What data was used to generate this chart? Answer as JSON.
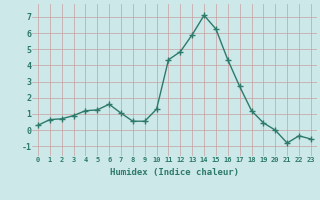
{
  "x": [
    0,
    1,
    2,
    3,
    4,
    5,
    6,
    7,
    8,
    9,
    10,
    11,
    12,
    13,
    14,
    15,
    16,
    17,
    18,
    19,
    20,
    21,
    22,
    23
  ],
  "y": [
    0.3,
    0.65,
    0.7,
    0.9,
    1.2,
    1.25,
    1.6,
    1.05,
    0.55,
    0.55,
    1.3,
    4.35,
    4.85,
    5.9,
    7.1,
    6.25,
    4.35,
    2.7,
    1.2,
    0.45,
    0.0,
    -0.8,
    -0.35,
    -0.55
  ],
  "xlabel": "Humidex (Indice chaleur)",
  "ylim": [
    -1.6,
    7.8
  ],
  "xlim": [
    -0.5,
    23.5
  ],
  "yticks": [
    -1,
    0,
    1,
    2,
    3,
    4,
    5,
    6,
    7
  ],
  "xtick_labels": [
    "0",
    "1",
    "2",
    "3",
    "4",
    "5",
    "6",
    "7",
    "8",
    "9",
    "10",
    "11",
    "12",
    "13",
    "14",
    "15",
    "16",
    "17",
    "18",
    "19",
    "20",
    "21",
    "22",
    "23"
  ],
  "line_color": "#2d7a6b",
  "marker_color": "#2d7a6b",
  "bg_color": "#cce8e8",
  "grid_color": "#b8d8d8",
  "xlabel_color": "#2d7a6b",
  "tick_color": "#2d7a6b"
}
